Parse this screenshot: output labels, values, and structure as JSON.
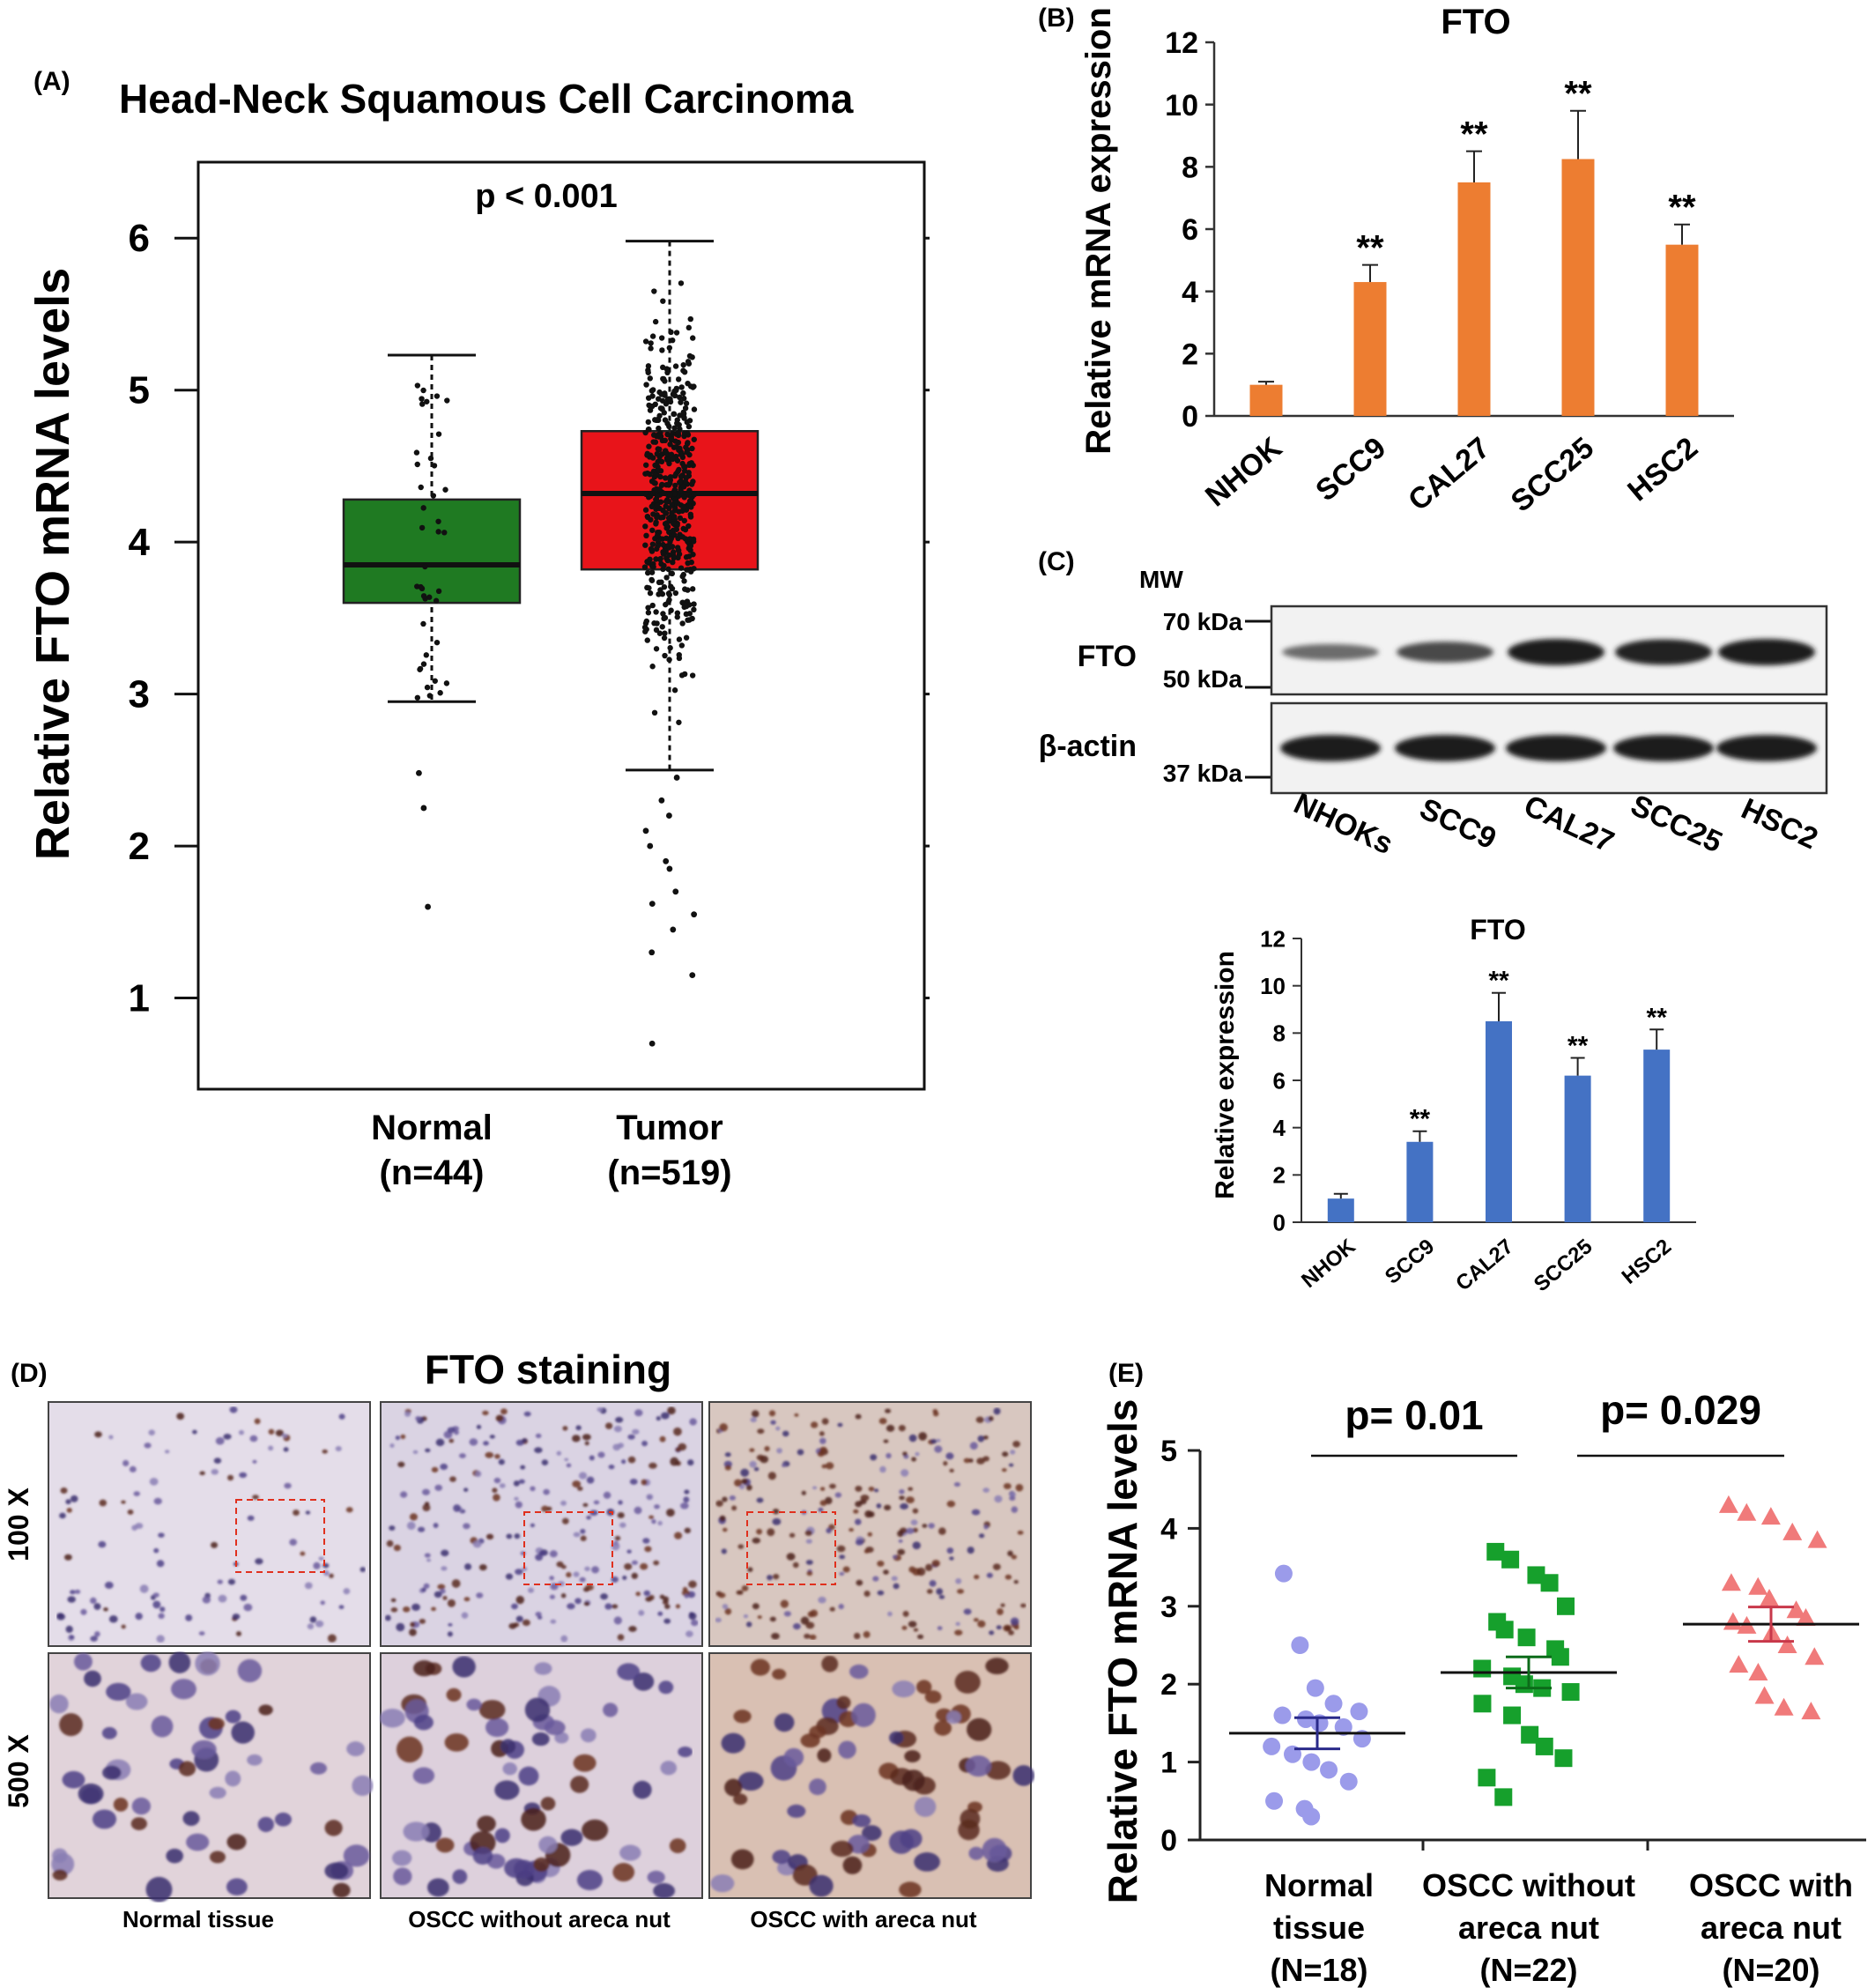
{
  "chart_data": [
    {
      "panel": "(A)",
      "type": "box",
      "title": "Head-Neck Squamous Cell Carcinoma",
      "annotation": "p < 0.001",
      "ylabel": "Relative FTO mRNA levels",
      "ylim": [
        0.4,
        6.5
      ],
      "yticks": [
        "1",
        "2",
        "3",
        "4",
        "5",
        "6"
      ],
      "groups": [
        {
          "name": "Normal",
          "n_label": "(n=44)",
          "color": "#1f7a22",
          "q1": 3.6,
          "median": 3.85,
          "q3": 4.28,
          "whisker_low": 2.95,
          "whisker_high": 5.23,
          "outliers": [
            2.48,
            2.25,
            1.6
          ]
        },
        {
          "name": "Tumor",
          "n_label": "(n=519)",
          "color": "#e8141a",
          "q1": 3.82,
          "median": 4.32,
          "q3": 4.73,
          "whisker_low": 2.5,
          "whisker_high": 5.98,
          "outliers": [
            2.45,
            2.3,
            2.2,
            2.1,
            2.0,
            1.9,
            1.85,
            1.7,
            1.62,
            1.55,
            1.45,
            1.3,
            1.15,
            0.7
          ]
        }
      ]
    },
    {
      "panel": "(B)",
      "type": "bar",
      "title": "FTO",
      "ylabel": "Relative mRNA expression",
      "ylim": [
        0,
        12
      ],
      "yticks": [
        "0",
        "2",
        "4",
        "6",
        "8",
        "10",
        "12"
      ],
      "categories": [
        "NHOK",
        "SCC9",
        "CAL27",
        "SCC25",
        "HSC2"
      ],
      "values": [
        1.0,
        4.3,
        7.5,
        8.25,
        5.5
      ],
      "errors": [
        0.1,
        0.55,
        1.0,
        1.55,
        0.65
      ],
      "significance": [
        "",
        "**",
        "**",
        "**",
        "**"
      ],
      "color": "#ed7d31"
    },
    {
      "panel": "(C)",
      "type": "western_blot",
      "mw_header": "MW",
      "markers": [
        "70 kDa",
        "50 kDa",
        "37 kDa"
      ],
      "rows": [
        "FTO",
        "β-actin"
      ],
      "lanes": [
        "NHOKs",
        "SCC9",
        "CAL27",
        "SCC25",
        "HSC2"
      ],
      "fto_band_intensity": [
        0.35,
        0.65,
        1.0,
        0.95,
        1.0
      ],
      "actin_band_intensity": [
        1,
        1,
        1,
        1,
        1
      ]
    },
    {
      "panel": "(C) quantification",
      "type": "bar",
      "title": "FTO",
      "ylabel": "Relative expression",
      "ylim": [
        0,
        12
      ],
      "yticks": [
        "0",
        "2",
        "4",
        "6",
        "8",
        "10",
        "12"
      ],
      "categories": [
        "NHOK",
        "SCC9",
        "CAL27",
        "SCC25",
        "HSC2"
      ],
      "values": [
        1.0,
        3.4,
        8.5,
        6.2,
        7.3
      ],
      "errors": [
        0.2,
        0.45,
        1.2,
        0.75,
        0.85
      ],
      "significance": [
        "",
        "**",
        "**",
        "**",
        "**"
      ],
      "color": "#4472c4"
    },
    {
      "panel": "(D)",
      "type": "micrograph_grid",
      "title": "FTO staining",
      "row_labels": [
        "100 X",
        "500 X"
      ],
      "column_labels": [
        "Normal tissue",
        "OSCC without areca nut",
        "OSCC with areca nut"
      ]
    },
    {
      "panel": "(E)",
      "type": "scatter",
      "ylabel": "Relative FTO mRNA levels",
      "ylim": [
        0,
        5
      ],
      "yticks": [
        "0",
        "1",
        "2",
        "3",
        "4",
        "5"
      ],
      "comparisons": [
        {
          "label": "p= 0.01",
          "from": 0,
          "to": 1
        },
        {
          "label": "p= 0.029",
          "from": 1,
          "to": 2
        }
      ],
      "groups": [
        {
          "name_line1": "Normal",
          "name_line2": "tissue",
          "n_label": "(N=18)",
          "color": "#9b9bea",
          "marker": "circle",
          "mean": 1.37,
          "sem": 0.2,
          "points": [
            3.42,
            2.5,
            1.95,
            1.75,
            1.65,
            1.6,
            1.55,
            1.5,
            1.45,
            1.3,
            1.2,
            1.1,
            1.0,
            0.9,
            0.75,
            0.5,
            0.4,
            0.3
          ]
        },
        {
          "name_line1": "OSCC without",
          "name_line2": "areca nut",
          "n_label": "(N=22)",
          "color": "#16a02c",
          "marker": "square",
          "mean": 2.15,
          "sem": 0.2,
          "points": [
            3.7,
            3.6,
            3.4,
            3.3,
            3.0,
            2.8,
            2.7,
            2.6,
            2.45,
            2.35,
            2.2,
            2.1,
            2.0,
            1.95,
            1.9,
            1.75,
            1.6,
            1.35,
            1.2,
            1.05,
            0.8,
            0.55
          ]
        },
        {
          "name_line1": "OSCC with",
          "name_line2": "areca nut",
          "n_label": "(N=20)",
          "color": "#f07a7a",
          "marker": "triangle",
          "mean": 2.77,
          "sem": 0.22,
          "points": [
            4.3,
            4.2,
            4.15,
            3.95,
            3.85,
            3.3,
            3.25,
            3.1,
            2.95,
            2.85,
            2.8,
            2.75,
            2.65,
            2.5,
            2.35,
            2.25,
            2.15,
            1.85,
            1.7,
            1.65
          ]
        }
      ]
    }
  ]
}
